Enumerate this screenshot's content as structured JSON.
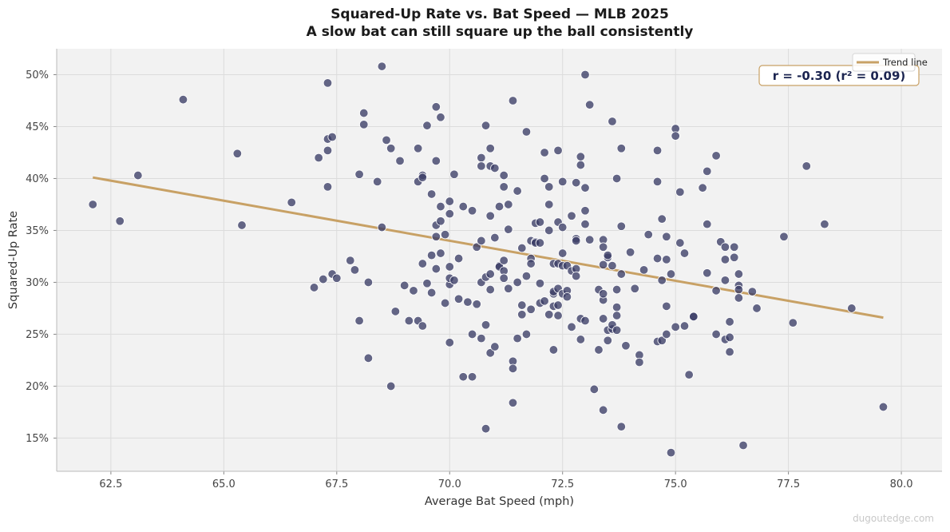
{
  "chart_data": {
    "type": "scatter",
    "title": "Squared-Up Rate vs. Bat Speed — MLB 2025",
    "subtitle": "A slow bat can still square up the ball consistently",
    "xlabel": "Average Bat Speed (mph)",
    "ylabel": "Squared-Up Rate",
    "xlim": [
      61.3,
      80.9
    ],
    "ylim": [
      11.8,
      52.5
    ],
    "xticks": [
      62.5,
      65.0,
      67.5,
      70.0,
      72.5,
      75.0,
      77.5,
      80.0
    ],
    "yticks": [
      15,
      20,
      25,
      30,
      35,
      40,
      45,
      50
    ],
    "xtick_labels": [
      "62.5",
      "65.0",
      "67.5",
      "70.0",
      "72.5",
      "75.0",
      "77.5",
      "80.0"
    ],
    "ytick_labels": [
      "15%",
      "20%",
      "25%",
      "30%",
      "35%",
      "40%",
      "45%",
      "50%"
    ],
    "grid": true,
    "legend": {
      "placement": "top-right",
      "entries": [
        "Trend line"
      ]
    },
    "annotation": "r = -0.30  (r² = 0.09)",
    "trend_line": {
      "name": "Trend line",
      "x": [
        62.1,
        79.6
      ],
      "y": [
        40.1,
        26.6
      ]
    },
    "colors": {
      "points": "#3b3d66",
      "trend": "#c8a165",
      "background": "#f2f2f2",
      "annotation_text": "#1b2450"
    },
    "points": [
      [
        62.1,
        37.5
      ],
      [
        62.7,
        35.9
      ],
      [
        63.1,
        40.3
      ],
      [
        64.1,
        47.6
      ],
      [
        65.3,
        42.4
      ],
      [
        65.4,
        35.5
      ],
      [
        66.5,
        37.7
      ],
      [
        67.0,
        29.5
      ],
      [
        67.2,
        30.3
      ],
      [
        67.1,
        42.0
      ],
      [
        67.3,
        42.7
      ],
      [
        67.3,
        43.8
      ],
      [
        67.3,
        39.2
      ],
      [
        67.3,
        49.2
      ],
      [
        67.4,
        44.0
      ],
      [
        67.4,
        30.8
      ],
      [
        67.5,
        30.4
      ],
      [
        67.8,
        32.1
      ],
      [
        67.9,
        31.2
      ],
      [
        68.0,
        40.4
      ],
      [
        68.0,
        26.3
      ],
      [
        68.1,
        46.3
      ],
      [
        68.1,
        45.2
      ],
      [
        68.2,
        30.0
      ],
      [
        68.2,
        22.7
      ],
      [
        68.4,
        39.7
      ],
      [
        68.5,
        50.8
      ],
      [
        68.5,
        35.3
      ],
      [
        68.6,
        43.7
      ],
      [
        68.7,
        42.9
      ],
      [
        68.7,
        20.0
      ],
      [
        68.8,
        27.2
      ],
      [
        68.9,
        41.7
      ],
      [
        69.0,
        29.7
      ],
      [
        69.1,
        26.3
      ],
      [
        69.2,
        29.2
      ],
      [
        69.3,
        42.9
      ],
      [
        69.3,
        39.7
      ],
      [
        69.3,
        26.3
      ],
      [
        69.4,
        40.3
      ],
      [
        69.4,
        40.1
      ],
      [
        69.4,
        31.8
      ],
      [
        69.4,
        25.8
      ],
      [
        69.5,
        29.9
      ],
      [
        69.5,
        45.1
      ],
      [
        69.6,
        38.5
      ],
      [
        69.6,
        29.0
      ],
      [
        69.6,
        32.6
      ],
      [
        69.7,
        31.3
      ],
      [
        69.7,
        46.9
      ],
      [
        69.7,
        41.7
      ],
      [
        69.7,
        35.5
      ],
      [
        69.7,
        34.4
      ],
      [
        69.8,
        32.8
      ],
      [
        69.8,
        35.9
      ],
      [
        69.8,
        45.9
      ],
      [
        69.8,
        37.3
      ],
      [
        69.9,
        34.6
      ],
      [
        69.9,
        28.0
      ],
      [
        70.0,
        36.6
      ],
      [
        70.0,
        37.8
      ],
      [
        70.0,
        29.8
      ],
      [
        70.0,
        30.4
      ],
      [
        70.0,
        31.5
      ],
      [
        70.0,
        24.2
      ],
      [
        70.1,
        40.4
      ],
      [
        70.1,
        30.2
      ],
      [
        70.2,
        32.3
      ],
      [
        70.2,
        28.4
      ],
      [
        70.3,
        37.3
      ],
      [
        70.3,
        20.9
      ],
      [
        70.4,
        28.1
      ],
      [
        70.5,
        36.9
      ],
      [
        70.5,
        25.0
      ],
      [
        70.5,
        20.9
      ],
      [
        70.6,
        33.4
      ],
      [
        70.6,
        27.9
      ],
      [
        70.7,
        34.0
      ],
      [
        70.7,
        30.0
      ],
      [
        70.7,
        42.0
      ],
      [
        70.7,
        41.2
      ],
      [
        70.7,
        24.6
      ],
      [
        70.8,
        30.5
      ],
      [
        70.8,
        25.9
      ],
      [
        70.8,
        15.9
      ],
      [
        70.8,
        45.1
      ],
      [
        70.9,
        42.9
      ],
      [
        70.9,
        41.2
      ],
      [
        70.9,
        36.4
      ],
      [
        70.9,
        29.3
      ],
      [
        70.9,
        23.2
      ],
      [
        70.9,
        30.8
      ],
      [
        71.0,
        41.0
      ],
      [
        71.0,
        34.3
      ],
      [
        71.0,
        23.8
      ],
      [
        71.1,
        37.3
      ],
      [
        71.1,
        31.6
      ],
      [
        71.1,
        31.5
      ],
      [
        71.2,
        40.3
      ],
      [
        71.2,
        39.2
      ],
      [
        71.2,
        32.1
      ],
      [
        71.2,
        31.1
      ],
      [
        71.2,
        30.4
      ],
      [
        71.3,
        35.1
      ],
      [
        71.3,
        37.5
      ],
      [
        71.3,
        29.4
      ],
      [
        71.4,
        47.5
      ],
      [
        71.4,
        22.4
      ],
      [
        71.4,
        21.7
      ],
      [
        71.4,
        18.4
      ],
      [
        71.5,
        24.6
      ],
      [
        71.5,
        30.0
      ],
      [
        71.5,
        38.8
      ],
      [
        71.6,
        27.8
      ],
      [
        71.6,
        26.9
      ],
      [
        71.6,
        33.3
      ],
      [
        71.7,
        25.0
      ],
      [
        71.7,
        30.6
      ],
      [
        71.7,
        44.5
      ],
      [
        71.8,
        32.3
      ],
      [
        71.8,
        31.8
      ],
      [
        71.8,
        34.0
      ],
      [
        71.8,
        27.4
      ],
      [
        71.9,
        33.9
      ],
      [
        71.9,
        33.8
      ],
      [
        71.9,
        35.7
      ],
      [
        72.0,
        35.8
      ],
      [
        72.0,
        33.8
      ],
      [
        72.0,
        28.0
      ],
      [
        72.0,
        29.9
      ],
      [
        72.1,
        28.2
      ],
      [
        72.1,
        40.0
      ],
      [
        72.1,
        42.5
      ],
      [
        72.2,
        37.5
      ],
      [
        72.2,
        35.0
      ],
      [
        72.2,
        26.9
      ],
      [
        72.2,
        39.2
      ],
      [
        72.3,
        28.9
      ],
      [
        72.3,
        31.8
      ],
      [
        72.3,
        29.1
      ],
      [
        72.3,
        23.5
      ],
      [
        72.3,
        27.7
      ],
      [
        72.4,
        29.4
      ],
      [
        72.4,
        42.7
      ],
      [
        72.4,
        31.8
      ],
      [
        72.4,
        35.8
      ],
      [
        72.4,
        27.8
      ],
      [
        72.4,
        26.8
      ],
      [
        72.5,
        35.3
      ],
      [
        72.5,
        32.8
      ],
      [
        72.5,
        31.6
      ],
      [
        72.5,
        28.9
      ],
      [
        72.5,
        39.7
      ],
      [
        72.6,
        31.6
      ],
      [
        72.6,
        29.2
      ],
      [
        72.6,
        28.6
      ],
      [
        72.7,
        36.4
      ],
      [
        72.7,
        25.7
      ],
      [
        72.7,
        31.1
      ],
      [
        72.8,
        34.2
      ],
      [
        72.8,
        39.6
      ],
      [
        72.8,
        34.0
      ],
      [
        72.8,
        31.3
      ],
      [
        72.8,
        30.6
      ],
      [
        72.9,
        42.1
      ],
      [
        72.9,
        41.3
      ],
      [
        72.9,
        26.5
      ],
      [
        72.9,
        24.5
      ],
      [
        73.0,
        50.0
      ],
      [
        73.0,
        39.1
      ],
      [
        73.0,
        36.9
      ],
      [
        73.0,
        35.6
      ],
      [
        73.0,
        26.3
      ],
      [
        73.1,
        47.1
      ],
      [
        73.1,
        34.1
      ],
      [
        73.2,
        19.7
      ],
      [
        73.3,
        29.3
      ],
      [
        73.3,
        23.5
      ],
      [
        73.4,
        34.1
      ],
      [
        73.4,
        33.4
      ],
      [
        73.4,
        31.7
      ],
      [
        73.4,
        26.5
      ],
      [
        73.4,
        28.3
      ],
      [
        73.4,
        28.9
      ],
      [
        73.4,
        17.7
      ],
      [
        73.5,
        32.4
      ],
      [
        73.5,
        24.4
      ],
      [
        73.5,
        25.4
      ],
      [
        73.5,
        32.6
      ],
      [
        73.6,
        45.5
      ],
      [
        73.6,
        31.6
      ],
      [
        73.6,
        25.5
      ],
      [
        73.6,
        25.9
      ],
      [
        73.7,
        29.3
      ],
      [
        73.7,
        27.6
      ],
      [
        73.7,
        26.8
      ],
      [
        73.7,
        40.0
      ],
      [
        73.7,
        25.4
      ],
      [
        73.8,
        42.9
      ],
      [
        73.8,
        35.4
      ],
      [
        73.8,
        16.1
      ],
      [
        73.8,
        30.8
      ],
      [
        73.9,
        23.9
      ],
      [
        74.0,
        32.9
      ],
      [
        74.1,
        29.4
      ],
      [
        74.2,
        23.0
      ],
      [
        74.2,
        22.3
      ],
      [
        74.3,
        31.2
      ],
      [
        74.4,
        34.6
      ],
      [
        74.6,
        42.7
      ],
      [
        74.6,
        39.7
      ],
      [
        74.6,
        32.3
      ],
      [
        74.6,
        24.3
      ],
      [
        74.7,
        30.2
      ],
      [
        74.7,
        24.4
      ],
      [
        74.7,
        36.1
      ],
      [
        74.8,
        34.4
      ],
      [
        74.8,
        27.7
      ],
      [
        74.8,
        25.0
      ],
      [
        74.8,
        32.2
      ],
      [
        74.9,
        30.8
      ],
      [
        74.9,
        13.6
      ],
      [
        75.0,
        44.8
      ],
      [
        75.0,
        44.1
      ],
      [
        75.0,
        25.7
      ],
      [
        75.1,
        38.7
      ],
      [
        75.1,
        33.8
      ],
      [
        75.2,
        32.8
      ],
      [
        75.2,
        25.8
      ],
      [
        75.3,
        21.1
      ],
      [
        75.4,
        26.7
      ],
      [
        75.4,
        26.7
      ],
      [
        75.6,
        39.1
      ],
      [
        75.7,
        40.7
      ],
      [
        75.7,
        35.6
      ],
      [
        75.7,
        30.9
      ],
      [
        75.9,
        42.2
      ],
      [
        75.9,
        29.2
      ],
      [
        75.9,
        25.0
      ],
      [
        76.0,
        33.9
      ],
      [
        76.1,
        33.4
      ],
      [
        76.1,
        32.2
      ],
      [
        76.1,
        30.2
      ],
      [
        76.1,
        24.5
      ],
      [
        76.2,
        26.2
      ],
      [
        76.2,
        24.7
      ],
      [
        76.2,
        23.3
      ],
      [
        76.3,
        33.4
      ],
      [
        76.3,
        32.4
      ],
      [
        76.4,
        30.8
      ],
      [
        76.4,
        29.7
      ],
      [
        76.4,
        29.3
      ],
      [
        76.4,
        28.5
      ],
      [
        76.5,
        14.3
      ],
      [
        76.7,
        29.1
      ],
      [
        76.8,
        27.5
      ],
      [
        77.4,
        34.4
      ],
      [
        77.6,
        26.1
      ],
      [
        77.9,
        41.2
      ],
      [
        78.3,
        35.6
      ],
      [
        78.9,
        27.5
      ],
      [
        79.6,
        18.0
      ]
    ]
  },
  "watermark": "dugoutedge.com"
}
